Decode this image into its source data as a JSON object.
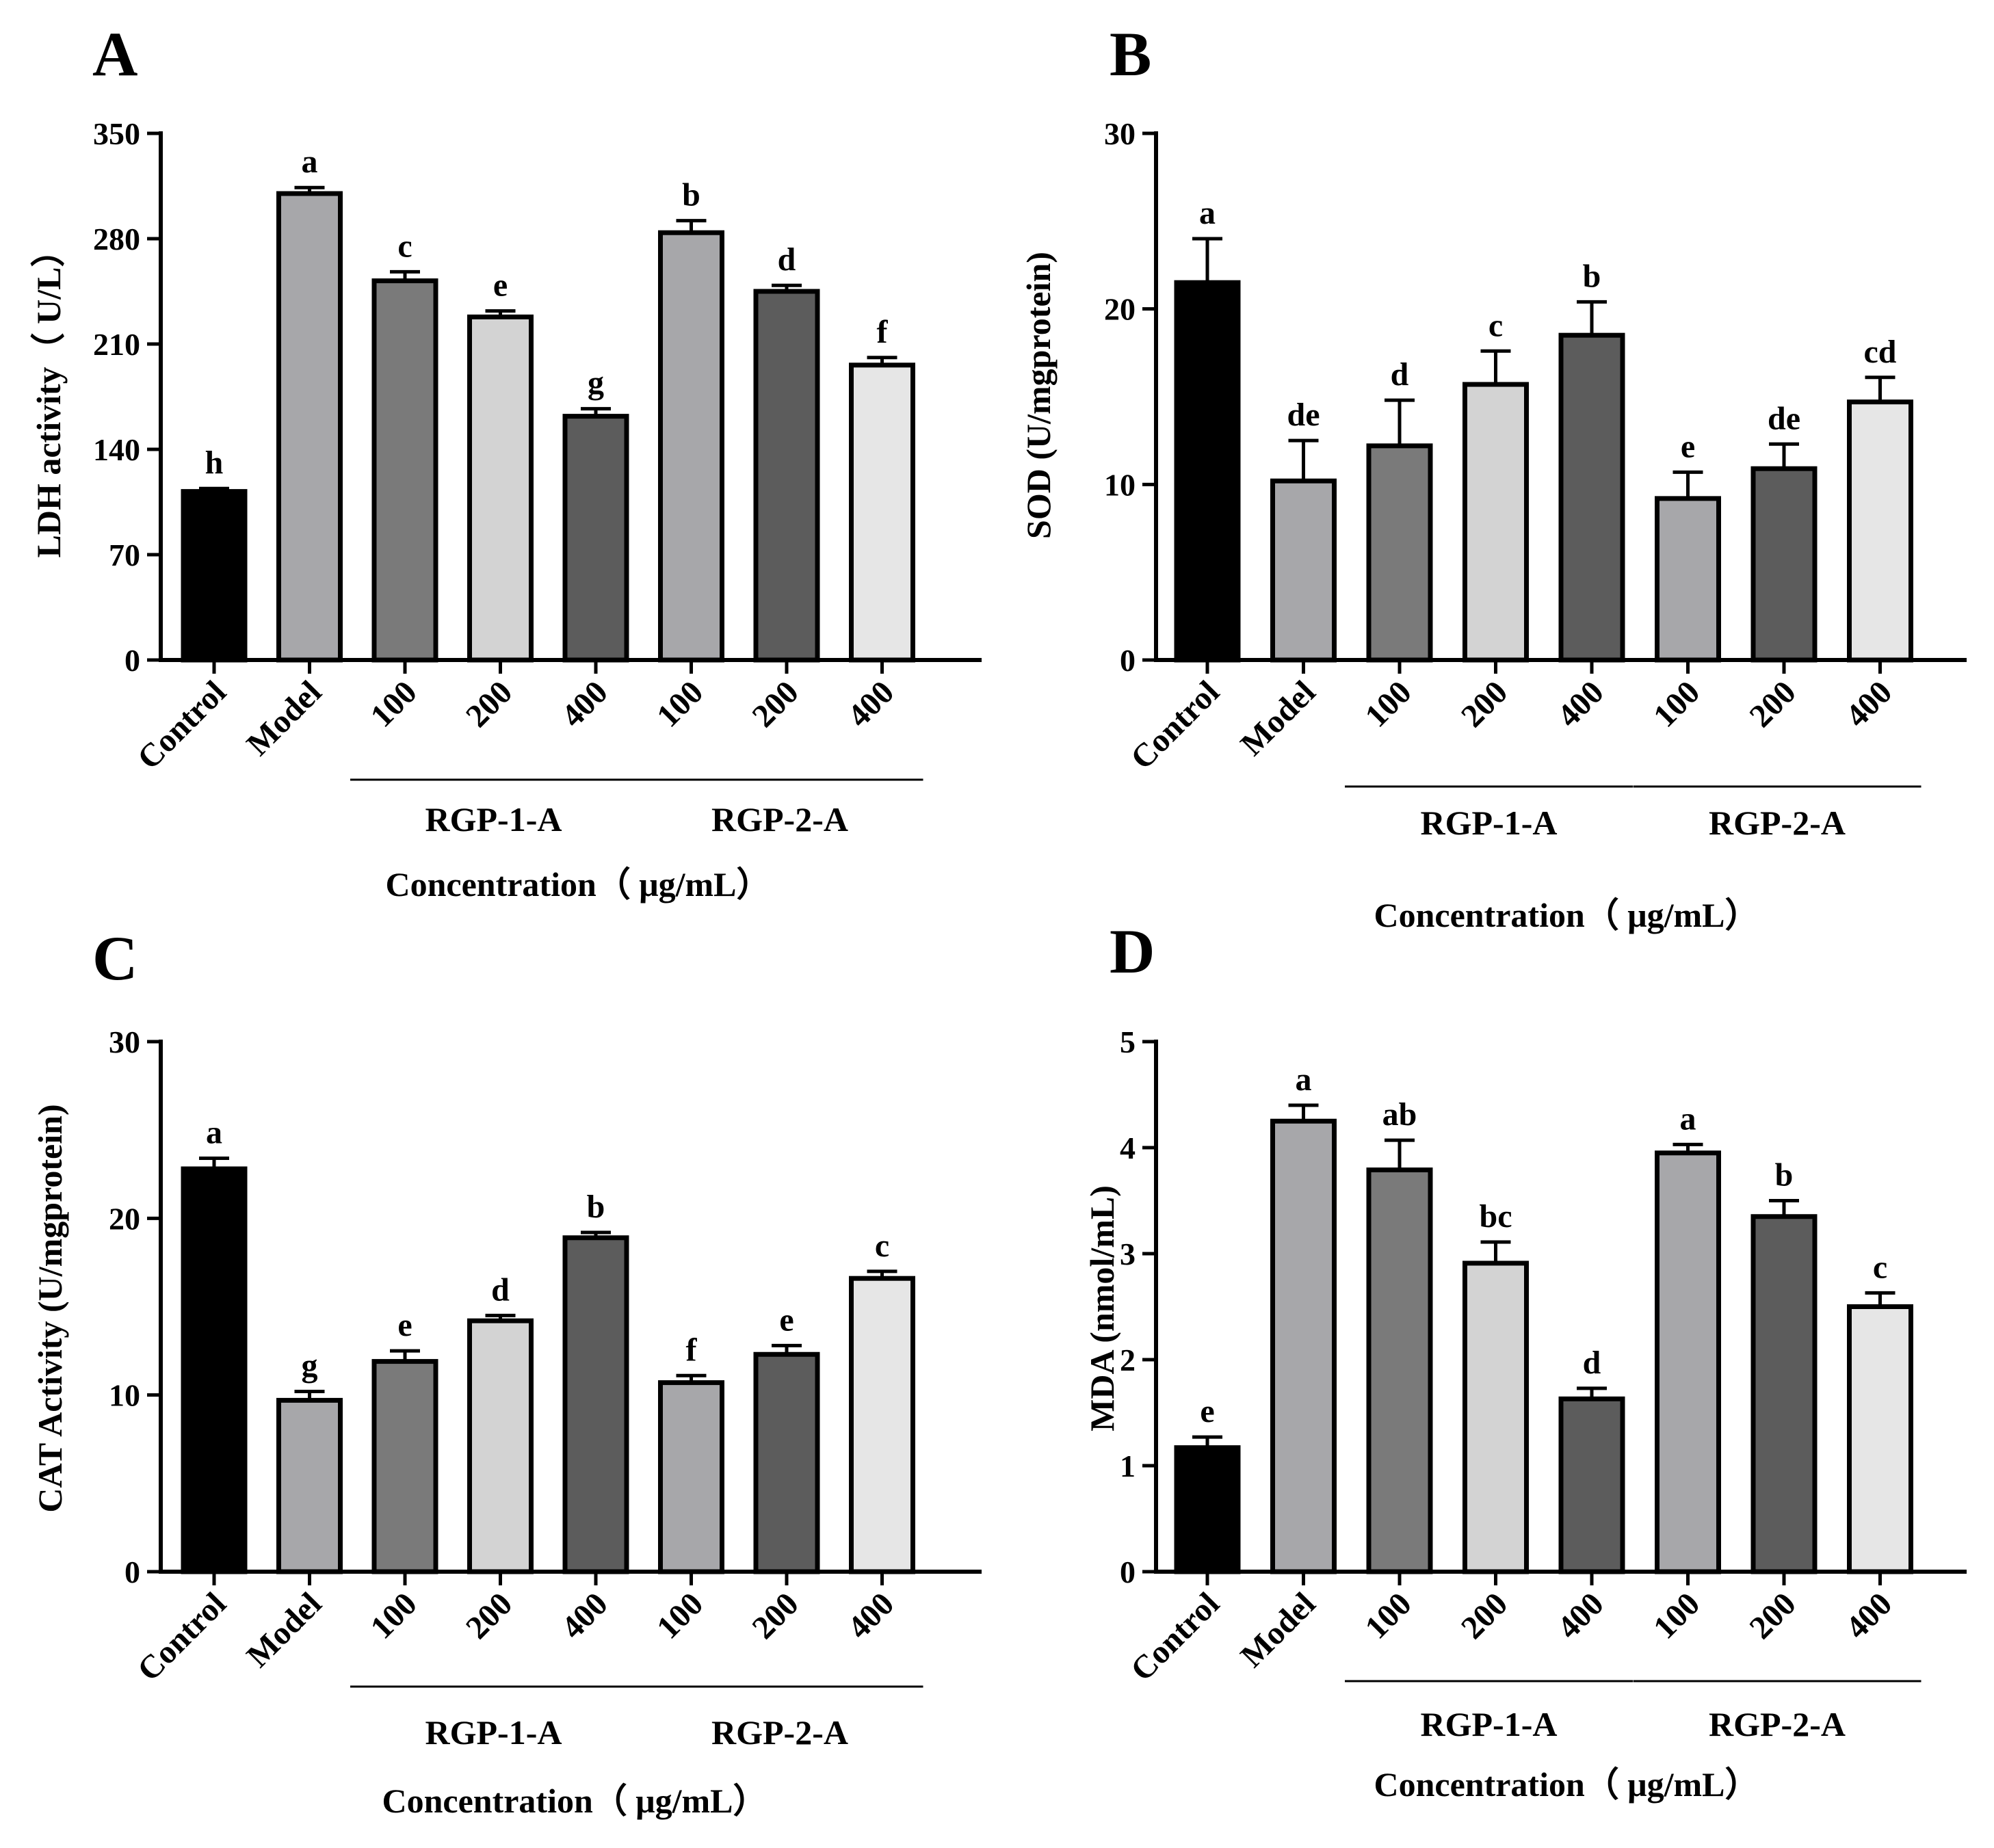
{
  "chart_data": [
    {
      "panel": "A",
      "type": "bar",
      "categories": [
        "Control",
        "Model",
        "100",
        "200",
        "400",
        "100",
        "200",
        "400"
      ],
      "groups": [
        {
          "label": "RGP-1-A",
          "from": 2,
          "to": 4
        },
        {
          "label": "RGP-2-A",
          "from": 5,
          "to": 7
        }
      ],
      "values": [
        112,
        310,
        252,
        228,
        162,
        284,
        245,
        196
      ],
      "errors": [
        2,
        4,
        6,
        4,
        5,
        8,
        4,
        5
      ],
      "significance": [
        "h",
        "a",
        "c",
        "e",
        "g",
        "b",
        "d",
        "f"
      ],
      "colors": [
        "#000000",
        "#a7a7aa",
        "#7a7a7a",
        "#d3d3d3",
        "#5c5c5c",
        "#a7a7aa",
        "#5c5c5c",
        "#e6e6e6"
      ],
      "ylabel": "LDH activity（ U/L）",
      "xlabel": "Concentration（ μg/mL）",
      "ylim": [
        0,
        350
      ],
      "yticks": [
        0,
        70,
        140,
        210,
        280,
        350
      ]
    },
    {
      "panel": "B",
      "type": "bar",
      "categories": [
        "Control",
        "Model",
        "100",
        "200",
        "400",
        "100",
        "200",
        "400"
      ],
      "groups": [
        {
          "label": "RGP-1-A",
          "from": 2,
          "to": 4
        },
        {
          "label": "RGP-2-A",
          "from": 5,
          "to": 7
        }
      ],
      "values": [
        21.5,
        10.2,
        12.2,
        15.7,
        18.5,
        9.2,
        10.9,
        14.7
      ],
      "errors": [
        2.5,
        2.3,
        2.6,
        1.9,
        1.9,
        1.5,
        1.4,
        1.4
      ],
      "significance": [
        "a",
        "de",
        "d",
        "c",
        "b",
        "e",
        "de",
        "cd"
      ],
      "colors": [
        "#000000",
        "#a7a7aa",
        "#7a7a7a",
        "#d3d3d3",
        "#5c5c5c",
        "#a7a7aa",
        "#5c5c5c",
        "#e6e6e6"
      ],
      "ylabel": "SOD (U/mgprotein)",
      "xlabel": "Concentration（ μg/mL）",
      "ylim": [
        0,
        30
      ],
      "yticks": [
        0,
        10,
        20,
        30
      ]
    },
    {
      "panel": "C",
      "type": "bar",
      "categories": [
        "Control",
        "Model",
        "100",
        "200",
        "400",
        "100",
        "200",
        "400"
      ],
      "groups": [
        {
          "label": "RGP-1-A",
          "from": 2,
          "to": 4
        },
        {
          "label": "RGP-2-A",
          "from": 5,
          "to": 7
        }
      ],
      "values": [
        22.8,
        9.7,
        11.9,
        14.2,
        18.9,
        10.7,
        12.3,
        16.6
      ],
      "errors": [
        0.6,
        0.5,
        0.6,
        0.3,
        0.3,
        0.4,
        0.5,
        0.4
      ],
      "significance": [
        "a",
        "g",
        "e",
        "d",
        "b",
        "f",
        "e",
        "c"
      ],
      "colors": [
        "#000000",
        "#a7a7aa",
        "#7a7a7a",
        "#d3d3d3",
        "#5c5c5c",
        "#a7a7aa",
        "#5c5c5c",
        "#e6e6e6"
      ],
      "ylabel": "CAT Activity (U/mgprotein)",
      "xlabel": "Concentration（ μg/mL）",
      "ylim": [
        0,
        30
      ],
      "yticks": [
        0,
        10,
        20,
        30
      ]
    },
    {
      "panel": "D",
      "type": "bar",
      "categories": [
        "Control",
        "Model",
        "100",
        "200",
        "400",
        "100",
        "200",
        "400"
      ],
      "groups": [
        {
          "label": "RGP-1-A",
          "from": 2,
          "to": 4
        },
        {
          "label": "RGP-2-A",
          "from": 5,
          "to": 7
        }
      ],
      "values": [
        1.17,
        4.25,
        3.79,
        2.91,
        1.63,
        3.95,
        3.35,
        2.5
      ],
      "errors": [
        0.1,
        0.15,
        0.28,
        0.2,
        0.1,
        0.08,
        0.15,
        0.13
      ],
      "significance": [
        "e",
        "a",
        "ab",
        "bc",
        "d",
        "a",
        "b",
        "c"
      ],
      "colors": [
        "#000000",
        "#a7a7aa",
        "#7a7a7a",
        "#d3d3d3",
        "#5c5c5c",
        "#a7a7aa",
        "#5c5c5c",
        "#e6e6e6"
      ],
      "ylabel": "MDA (nmol/mL)",
      "xlabel": "Concentration（ μg/mL）",
      "ylim": [
        0,
        5
      ],
      "yticks": [
        0,
        1,
        2,
        3,
        4,
        5
      ]
    }
  ]
}
